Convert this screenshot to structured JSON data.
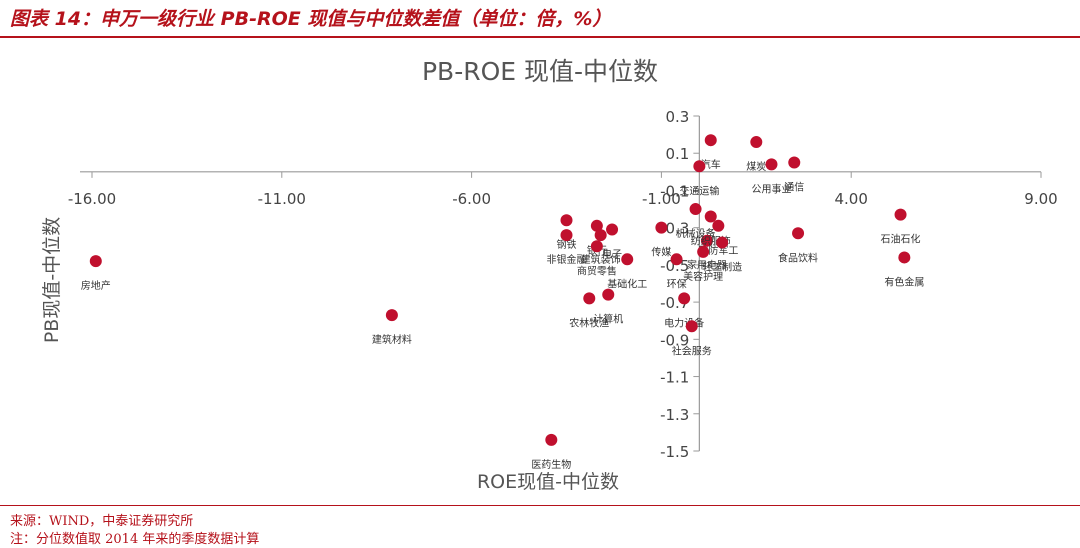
{
  "caption": "图表 14：申万一级行业 PB-ROE 现值与中位数差值（单位：倍，%）",
  "source_line": "来源：WIND，中泰证券研究所",
  "note_line": "注：分位数值取 2014 年来的季度数据计算",
  "colors": {
    "accent": "#b5121b",
    "point": "#c0102e",
    "axis": "#9a9a9a",
    "text": "#444444"
  },
  "chart_data": {
    "type": "scatter",
    "title": "PB-ROE 现值-中位数",
    "xlabel": "ROE现值-中位数",
    "ylabel": "PB现值-中位数",
    "xlim": [
      -16,
      9
    ],
    "ylim": [
      -1.5,
      0.3
    ],
    "x_ticks": [
      "-16.00",
      "-11.00",
      "-6.00",
      "-1.00",
      "4.00",
      "9.00"
    ],
    "x_tick_values": [
      -16,
      -11,
      -6,
      -1,
      4,
      9
    ],
    "y_ticks": [
      "0.3",
      "0.1",
      "-0.1",
      "-0.3",
      "-0.5",
      "-0.7",
      "-0.9",
      "-1.1",
      "-1.3",
      "-1.5"
    ],
    "y_tick_values": [
      0.3,
      0.1,
      -0.1,
      -0.3,
      -0.5,
      -0.7,
      -0.9,
      -1.1,
      -1.3,
      -1.5
    ],
    "points": [
      {
        "label": "房地产",
        "x": -15.9,
        "y": -0.48
      },
      {
        "label": "建筑材料",
        "x": -8.1,
        "y": -0.77
      },
      {
        "label": "医药生物",
        "x": -3.9,
        "y": -1.44
      },
      {
        "label": "钢铁",
        "x": -3.5,
        "y": -0.26
      },
      {
        "label": "银行",
        "x": -2.7,
        "y": -0.29
      },
      {
        "label": "电子",
        "x": -2.3,
        "y": -0.31
      },
      {
        "label": "非银金融",
        "x": -3.5,
        "y": -0.34
      },
      {
        "label": "建筑装饰",
        "x": -2.6,
        "y": -0.34
      },
      {
        "label": "商贸零售",
        "x": -2.7,
        "y": -0.4
      },
      {
        "label": "基础化工",
        "x": -1.9,
        "y": -0.47
      },
      {
        "label": "计算机",
        "x": -2.4,
        "y": -0.66
      },
      {
        "label": "农林牧渔",
        "x": -2.9,
        "y": -0.68
      },
      {
        "label": "传媒",
        "x": -1.0,
        "y": -0.3
      },
      {
        "label": "环保",
        "x": -0.6,
        "y": -0.47
      },
      {
        "label": "电力设备",
        "x": -0.4,
        "y": -0.68
      },
      {
        "label": "社会服务",
        "x": -0.2,
        "y": -0.83
      },
      {
        "label": "汽车",
        "x": 0.3,
        "y": 0.17
      },
      {
        "label": "煤炭",
        "x": 1.5,
        "y": 0.16
      },
      {
        "label": "公用事业",
        "x": 1.9,
        "y": 0.04
      },
      {
        "label": "通信",
        "x": 2.5,
        "y": 0.05
      },
      {
        "label": "交通运输",
        "x": 0.0,
        "y": 0.03
      },
      {
        "label": "机械设备",
        "x": -0.1,
        "y": -0.2
      },
      {
        "label": "国防军工",
        "x": 0.5,
        "y": -0.29
      },
      {
        "label": "家用电器",
        "x": 0.2,
        "y": -0.37
      },
      {
        "label": "美容护理",
        "x": 0.1,
        "y": -0.43
      },
      {
        "label": "纺织服饰",
        "x": 0.3,
        "y": -0.24
      },
      {
        "label": "轻工制造",
        "x": 0.6,
        "y": -0.38
      },
      {
        "label": "食品饮料",
        "x": 2.6,
        "y": -0.33
      },
      {
        "label": "石油石化",
        "x": 5.3,
        "y": -0.23
      },
      {
        "label": "有色金属",
        "x": 5.4,
        "y": -0.46
      }
    ]
  }
}
